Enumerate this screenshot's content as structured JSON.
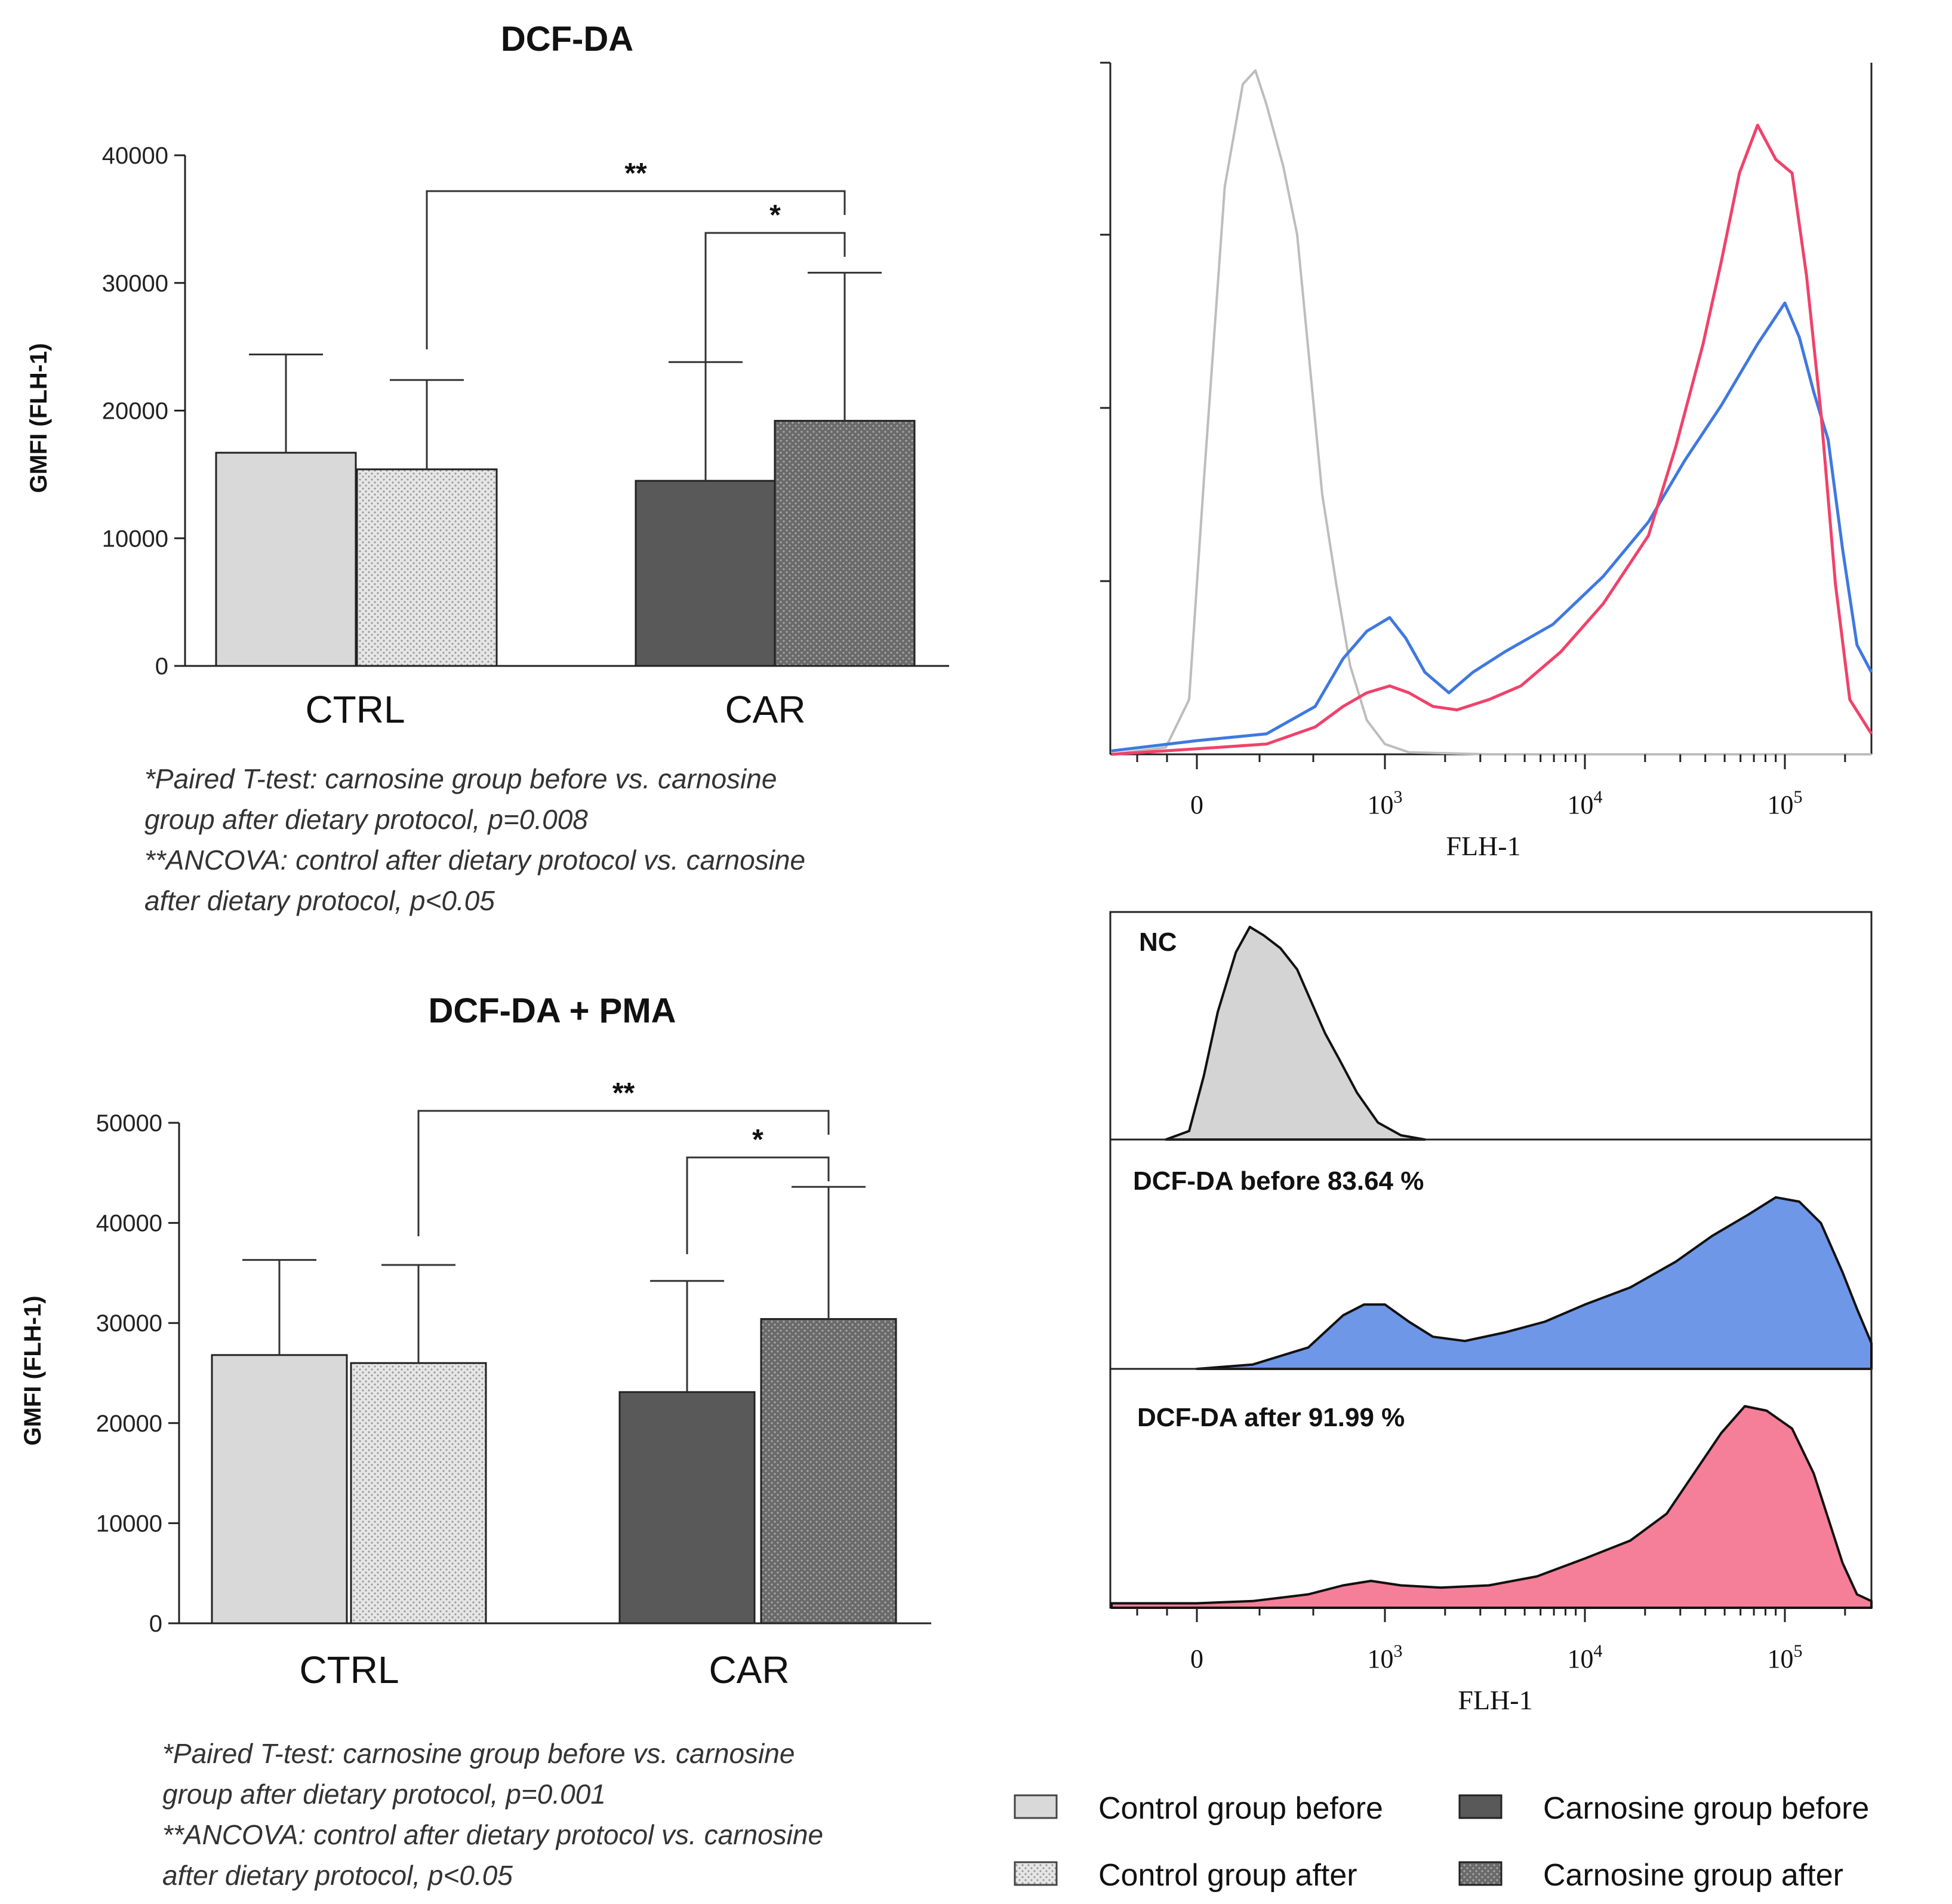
{
  "colors": {
    "control_before": "#d9d9d9",
    "control_after": "#e6e6e6",
    "carnosine_before": "#595959",
    "carnosine_after": "#6b6b6b",
    "nc_line": "#bdbdbd",
    "before_line": "#3f78e0",
    "after_line": "#f0426a",
    "before_fill": "#6f97e8",
    "after_fill": "#f57f98",
    "nc_fill": "#d4d4d4"
  },
  "chart_data": [
    {
      "type": "bar",
      "title": "DCF-DA",
      "ylabel": "GMFI (FLH-1)",
      "xlabel": "",
      "ylim": [
        0,
        40000
      ],
      "yticks": [
        "0",
        "10000",
        "20000",
        "30000",
        "40000"
      ],
      "categories": [
        "CTRL",
        "CAR"
      ],
      "series": [
        {
          "name": "Control group before",
          "group": "CTRL",
          "value": 16700,
          "error": 7700
        },
        {
          "name": "Control group after",
          "group": "CTRL",
          "value": 15400,
          "error": 7000
        },
        {
          "name": "Carnosine group before",
          "group": "CAR",
          "value": 14500,
          "error": 9300
        },
        {
          "name": "Carnosine group after",
          "group": "CAR",
          "value": 19200,
          "error": 11600
        }
      ],
      "significance": [
        {
          "label": "**",
          "from": "Control group after",
          "to": "Carnosine group after"
        },
        {
          "label": "*",
          "from": "Carnosine group before",
          "to": "Carnosine group after"
        }
      ],
      "notes": [
        "*Paired T-test: carnosine group before vs. carnosine",
        "group after dietary protocol, p=0.008",
        "**ANCOVA: control after dietary protocol vs. carnosine",
        "after dietary protocol, p<0.05"
      ]
    },
    {
      "type": "bar",
      "title": "DCF-DA + PMA",
      "ylabel": "GMFI (FLH-1)",
      "xlabel": "",
      "ylim": [
        0,
        50000
      ],
      "yticks": [
        "0",
        "10000",
        "20000",
        "30000",
        "40000",
        "50000"
      ],
      "categories": [
        "CTRL",
        "CAR"
      ],
      "series": [
        {
          "name": "Control group before",
          "group": "CTRL",
          "value": 26800,
          "error": 9500
        },
        {
          "name": "Control group after",
          "group": "CTRL",
          "value": 26000,
          "error": 9800
        },
        {
          "name": "Carnosine group before",
          "group": "CAR",
          "value": 23100,
          "error": 11100
        },
        {
          "name": "Carnosine group after",
          "group": "CAR",
          "value": 30400,
          "error": 13200
        }
      ],
      "significance": [
        {
          "label": "**",
          "from": "Control group after",
          "to": "Carnosine group after"
        },
        {
          "label": "*",
          "from": "Carnosine group before",
          "to": "Carnosine group after"
        }
      ],
      "notes": [
        "*Paired T-test: carnosine group before vs. carnosine",
        "group after dietary protocol, p=0.001",
        "**ANCOVA: control after dietary protocol vs. carnosine",
        "after dietary protocol, p<0.05"
      ]
    },
    {
      "type": "line",
      "title": "",
      "xlabel": "FLH-1",
      "xscale": "biexponential",
      "xticks": [
        "0",
        "10^3",
        "10^4",
        "10^5"
      ],
      "series": [
        {
          "name": "NC",
          "points": [
            [
              -0.55,
              0
            ],
            [
              -0.2,
              0.01
            ],
            [
              -0.05,
              0.08
            ],
            [
              0.05,
              0.4
            ],
            [
              0.2,
              0.83
            ],
            [
              0.33,
              0.98
            ],
            [
              0.42,
              1.0
            ],
            [
              0.5,
              0.95
            ],
            [
              0.62,
              0.86
            ],
            [
              0.72,
              0.76
            ],
            [
              0.82,
              0.55
            ],
            [
              0.9,
              0.38
            ],
            [
              1.0,
              0.25
            ],
            [
              1.1,
              0.13
            ],
            [
              1.22,
              0.05
            ],
            [
              1.35,
              0.015
            ],
            [
              1.5,
              0.003
            ],
            [
              2.0,
              0.0
            ],
            [
              4.3,
              0.0
            ]
          ]
        },
        {
          "name": "DCF-DA before",
          "points": [
            [
              -0.55,
              0.005
            ],
            [
              0,
              0.02
            ],
            [
              0.5,
              0.03
            ],
            [
              0.85,
              0.07
            ],
            [
              1.05,
              0.14
            ],
            [
              1.22,
              0.18
            ],
            [
              1.38,
              0.2
            ],
            [
              1.48,
              0.17
            ],
            [
              1.6,
              0.12
            ],
            [
              1.75,
              0.09
            ],
            [
              1.9,
              0.12
            ],
            [
              2.1,
              0.15
            ],
            [
              2.4,
              0.19
            ],
            [
              2.7,
              0.26
            ],
            [
              2.95,
              0.34
            ],
            [
              3.15,
              0.43
            ],
            [
              3.35,
              0.51
            ],
            [
              3.55,
              0.6
            ],
            [
              3.7,
              0.66
            ],
            [
              3.8,
              0.61
            ],
            [
              3.9,
              0.53
            ],
            [
              4.0,
              0.46
            ],
            [
              4.1,
              0.3
            ],
            [
              4.2,
              0.16
            ],
            [
              4.3,
              0.12
            ]
          ]
        },
        {
          "name": "DCF-DA after",
          "points": [
            [
              -0.55,
              0.0
            ],
            [
              0,
              0.008
            ],
            [
              0.5,
              0.015
            ],
            [
              0.85,
              0.04
            ],
            [
              1.05,
              0.07
            ],
            [
              1.22,
              0.09
            ],
            [
              1.38,
              0.1
            ],
            [
              1.5,
              0.09
            ],
            [
              1.65,
              0.07
            ],
            [
              1.8,
              0.065
            ],
            [
              2.0,
              0.08
            ],
            [
              2.2,
              0.1
            ],
            [
              2.45,
              0.15
            ],
            [
              2.7,
              0.22
            ],
            [
              2.95,
              0.32
            ],
            [
              3.1,
              0.45
            ],
            [
              3.25,
              0.6
            ],
            [
              3.35,
              0.72
            ],
            [
              3.45,
              0.85
            ],
            [
              3.55,
              0.92
            ],
            [
              3.65,
              0.87
            ],
            [
              3.75,
              0.85
            ],
            [
              3.85,
              0.7
            ],
            [
              3.95,
              0.5
            ],
            [
              4.05,
              0.25
            ],
            [
              4.15,
              0.08
            ],
            [
              4.3,
              0.03
            ]
          ]
        }
      ]
    },
    {
      "type": "area",
      "title": "",
      "xlabel": "FLH-1",
      "xticks": [
        "0",
        "10^3",
        "10^4",
        "10^5"
      ],
      "panels": [
        {
          "label": "NC",
          "points": [
            [
              -0.2,
              0
            ],
            [
              -0.05,
              0.04
            ],
            [
              0.05,
              0.3
            ],
            [
              0.15,
              0.6
            ],
            [
              0.28,
              0.88
            ],
            [
              0.38,
              1.0
            ],
            [
              0.48,
              0.96
            ],
            [
              0.6,
              0.9
            ],
            [
              0.72,
              0.8
            ],
            [
              0.82,
              0.65
            ],
            [
              0.92,
              0.5
            ],
            [
              1.02,
              0.38
            ],
            [
              1.15,
              0.22
            ],
            [
              1.3,
              0.08
            ],
            [
              1.45,
              0.02
            ],
            [
              1.6,
              0.0
            ]
          ]
        },
        {
          "label": "DCF-DA before 83.64 %",
          "points": [
            [
              0.0,
              0
            ],
            [
              0.4,
              0.02
            ],
            [
              0.8,
              0.1
            ],
            [
              1.05,
              0.25
            ],
            [
              1.2,
              0.3
            ],
            [
              1.35,
              0.3
            ],
            [
              1.5,
              0.22
            ],
            [
              1.65,
              0.15
            ],
            [
              1.85,
              0.13
            ],
            [
              2.1,
              0.17
            ],
            [
              2.35,
              0.22
            ],
            [
              2.6,
              0.3
            ],
            [
              2.85,
              0.38
            ],
            [
              3.1,
              0.5
            ],
            [
              3.3,
              0.62
            ],
            [
              3.5,
              0.72
            ],
            [
              3.65,
              0.8
            ],
            [
              3.8,
              0.78
            ],
            [
              3.95,
              0.68
            ],
            [
              4.1,
              0.45
            ],
            [
              4.2,
              0.28
            ],
            [
              4.3,
              0.12
            ]
          ]
        },
        {
          "label": "DCF-DA after 91.99 %",
          "points": [
            [
              -0.55,
              0.02
            ],
            [
              0,
              0.02
            ],
            [
              0.4,
              0.03
            ],
            [
              0.8,
              0.06
            ],
            [
              1.05,
              0.1
            ],
            [
              1.25,
              0.12
            ],
            [
              1.45,
              0.1
            ],
            [
              1.7,
              0.09
            ],
            [
              2.0,
              0.1
            ],
            [
              2.3,
              0.14
            ],
            [
              2.6,
              0.22
            ],
            [
              2.85,
              0.3
            ],
            [
              3.05,
              0.42
            ],
            [
              3.2,
              0.6
            ],
            [
              3.35,
              0.78
            ],
            [
              3.48,
              0.9
            ],
            [
              3.6,
              0.88
            ],
            [
              3.75,
              0.8
            ],
            [
              3.9,
              0.6
            ],
            [
              4.0,
              0.4
            ],
            [
              4.1,
              0.2
            ],
            [
              4.2,
              0.06
            ],
            [
              4.3,
              0.03
            ]
          ]
        }
      ]
    }
  ],
  "legend": {
    "items": [
      {
        "label": "Control group before",
        "key": "control_before"
      },
      {
        "label": "Carnosine group before",
        "key": "carnosine_before"
      },
      {
        "label": "Control group after",
        "key": "control_after"
      },
      {
        "label": "Carnosine group after",
        "key": "carnosine_after"
      }
    ]
  }
}
